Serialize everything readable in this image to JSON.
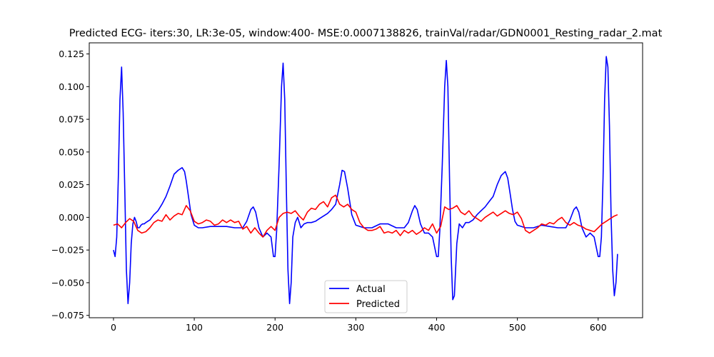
{
  "chart_data": {
    "type": "line",
    "title": "Predicted ECG- iters:30, LR:3e-05, window:400- MSE:0.0007138826, trainVal/radar/GDN0001_Resting_radar_2.mat",
    "xlabel": "",
    "ylabel": "",
    "xlim": [
      -30,
      655
    ],
    "ylim": [
      -0.0768,
      0.1335
    ],
    "x_ticks": [
      0,
      100,
      200,
      300,
      400,
      500,
      600
    ],
    "y_ticks": [
      -0.075,
      -0.05,
      -0.025,
      0.0,
      0.025,
      0.05,
      0.075,
      0.1,
      0.125
    ],
    "y_tick_labels": [
      "−0.075",
      "−0.050",
      "−0.025",
      "0.000",
      "0.025",
      "0.050",
      "0.075",
      "0.100",
      "0.125"
    ],
    "grid": false,
    "legend": {
      "position": "lower-center",
      "entries": [
        "Actual",
        "Predicted"
      ]
    },
    "series": [
      {
        "name": "Actual",
        "color": "#0000ff",
        "x": [
          0,
          2,
          4,
          6,
          8,
          10,
          12,
          14,
          16,
          18,
          20,
          22,
          24,
          26,
          28,
          30,
          32,
          34,
          36,
          38,
          40,
          45,
          50,
          55,
          60,
          65,
          70,
          75,
          80,
          85,
          88,
          90,
          93,
          96,
          100,
          105,
          110,
          120,
          130,
          140,
          150,
          160,
          165,
          170,
          173,
          176,
          180,
          185,
          190,
          195,
          198,
          200,
          202,
          205,
          208,
          210,
          212,
          214,
          216,
          218,
          220,
          222,
          225,
          228,
          232,
          236,
          240,
          245,
          250,
          255,
          260,
          265,
          270,
          275,
          280,
          283,
          286,
          290,
          295,
          300,
          310,
          320,
          330,
          340,
          350,
          360,
          365,
          370,
          373,
          376,
          380,
          385,
          390,
          395,
          400,
          402,
          404,
          407,
          410,
          412,
          414,
          416,
          418,
          420,
          422,
          425,
          428,
          432,
          436,
          440,
          445,
          450,
          455,
          460,
          465,
          470,
          475,
          480,
          485,
          488,
          491,
          494,
          497,
          500,
          510,
          520,
          530,
          540,
          550,
          560,
          565,
          570,
          573,
          576,
          580,
          585,
          590,
          595,
          600,
          602,
          604,
          606,
          608,
          610,
          612,
          614,
          616,
          618,
          620,
          622,
          624
        ],
        "y": [
          -0.025,
          -0.03,
          -0.015,
          0.03,
          0.09,
          0.115,
          0.08,
          0.02,
          -0.04,
          -0.066,
          -0.05,
          -0.02,
          -0.005,
          0.0,
          -0.003,
          -0.008,
          -0.008,
          -0.006,
          -0.005,
          -0.005,
          -0.004,
          -0.002,
          0.002,
          0.005,
          0.01,
          0.016,
          0.024,
          0.033,
          0.036,
          0.038,
          0.035,
          0.028,
          0.015,
          0.002,
          -0.006,
          -0.008,
          -0.008,
          -0.007,
          -0.007,
          -0.007,
          -0.008,
          -0.008,
          -0.003,
          0.006,
          0.008,
          0.004,
          -0.008,
          -0.015,
          -0.012,
          -0.015,
          -0.03,
          -0.03,
          -0.01,
          0.04,
          0.1,
          0.118,
          0.09,
          0.02,
          -0.04,
          -0.066,
          -0.05,
          -0.015,
          -0.004,
          0.0,
          -0.008,
          -0.005,
          -0.004,
          -0.004,
          -0.003,
          -0.001,
          0.001,
          0.003,
          0.006,
          0.01,
          0.025,
          0.036,
          0.035,
          0.022,
          0.002,
          -0.006,
          -0.008,
          -0.008,
          -0.005,
          -0.005,
          -0.008,
          -0.008,
          -0.004,
          0.005,
          0.009,
          0.006,
          -0.005,
          -0.012,
          -0.012,
          -0.015,
          -0.03,
          -0.03,
          -0.01,
          0.04,
          0.1,
          0.12,
          0.1,
          0.03,
          -0.03,
          -0.063,
          -0.06,
          -0.02,
          -0.005,
          -0.008,
          -0.004,
          -0.004,
          -0.002,
          0.002,
          0.005,
          0.008,
          0.012,
          0.016,
          0.025,
          0.032,
          0.035,
          0.03,
          0.018,
          0.006,
          -0.003,
          -0.006,
          -0.008,
          -0.008,
          -0.006,
          -0.007,
          -0.008,
          -0.008,
          -0.002,
          0.006,
          0.008,
          0.004,
          -0.008,
          -0.015,
          -0.012,
          -0.015,
          -0.03,
          -0.03,
          -0.015,
          0.03,
          0.09,
          0.123,
          0.115,
          0.07,
          0.0,
          -0.04,
          -0.06,
          -0.05,
          -0.028
        ]
      },
      {
        "name": "Predicted",
        "color": "#ff0000",
        "x": [
          0,
          5,
          10,
          15,
          20,
          25,
          30,
          35,
          40,
          45,
          50,
          55,
          60,
          65,
          70,
          75,
          80,
          85,
          90,
          95,
          100,
          105,
          110,
          115,
          120,
          125,
          130,
          135,
          140,
          145,
          150,
          155,
          160,
          165,
          170,
          175,
          180,
          185,
          190,
          195,
          200,
          205,
          210,
          215,
          220,
          225,
          230,
          235,
          240,
          245,
          250,
          255,
          260,
          265,
          270,
          275,
          280,
          285,
          290,
          295,
          300,
          305,
          310,
          315,
          320,
          325,
          330,
          335,
          340,
          345,
          350,
          355,
          360,
          365,
          370,
          375,
          380,
          385,
          390,
          395,
          400,
          405,
          410,
          415,
          420,
          425,
          430,
          435,
          440,
          445,
          450,
          455,
          460,
          465,
          470,
          475,
          480,
          485,
          490,
          495,
          500,
          505,
          510,
          515,
          520,
          525,
          530,
          535,
          540,
          545,
          550,
          555,
          560,
          565,
          570,
          575,
          580,
          585,
          590,
          595,
          600,
          605,
          610,
          615,
          620,
          624
        ],
        "y": [
          -0.006,
          -0.005,
          -0.008,
          -0.004,
          -0.001,
          -0.003,
          -0.01,
          -0.012,
          -0.011,
          -0.008,
          -0.004,
          -0.002,
          -0.003,
          0.002,
          -0.002,
          0.001,
          0.003,
          0.002,
          0.009,
          0.005,
          -0.003,
          -0.005,
          -0.004,
          -0.002,
          -0.003,
          -0.006,
          -0.005,
          -0.002,
          -0.004,
          -0.002,
          -0.004,
          -0.003,
          -0.009,
          -0.007,
          -0.012,
          -0.008,
          -0.012,
          -0.015,
          -0.01,
          -0.007,
          -0.01,
          0.0,
          0.003,
          0.004,
          0.003,
          0.005,
          0.001,
          -0.002,
          0.004,
          0.007,
          0.006,
          0.01,
          0.012,
          0.008,
          0.015,
          0.017,
          0.01,
          0.008,
          0.01,
          0.006,
          0.004,
          -0.004,
          -0.008,
          -0.01,
          -0.01,
          -0.009,
          -0.007,
          -0.012,
          -0.011,
          -0.012,
          -0.01,
          -0.014,
          -0.01,
          -0.012,
          -0.01,
          -0.013,
          -0.011,
          -0.008,
          -0.01,
          -0.005,
          -0.012,
          -0.007,
          0.008,
          0.006,
          0.007,
          0.009,
          0.004,
          0.002,
          0.005,
          0.001,
          -0.001,
          -0.003,
          0.0,
          0.002,
          0.004,
          0.001,
          0.003,
          0.005,
          0.003,
          0.002,
          0.004,
          -0.001,
          -0.01,
          -0.012,
          -0.01,
          -0.008,
          -0.005,
          -0.006,
          -0.004,
          -0.005,
          -0.002,
          0.0,
          -0.004,
          -0.006,
          -0.004,
          -0.006,
          -0.007,
          -0.009,
          -0.01,
          -0.011,
          -0.008,
          -0.005,
          -0.003,
          -0.001,
          0.001,
          0.002
        ]
      }
    ]
  }
}
